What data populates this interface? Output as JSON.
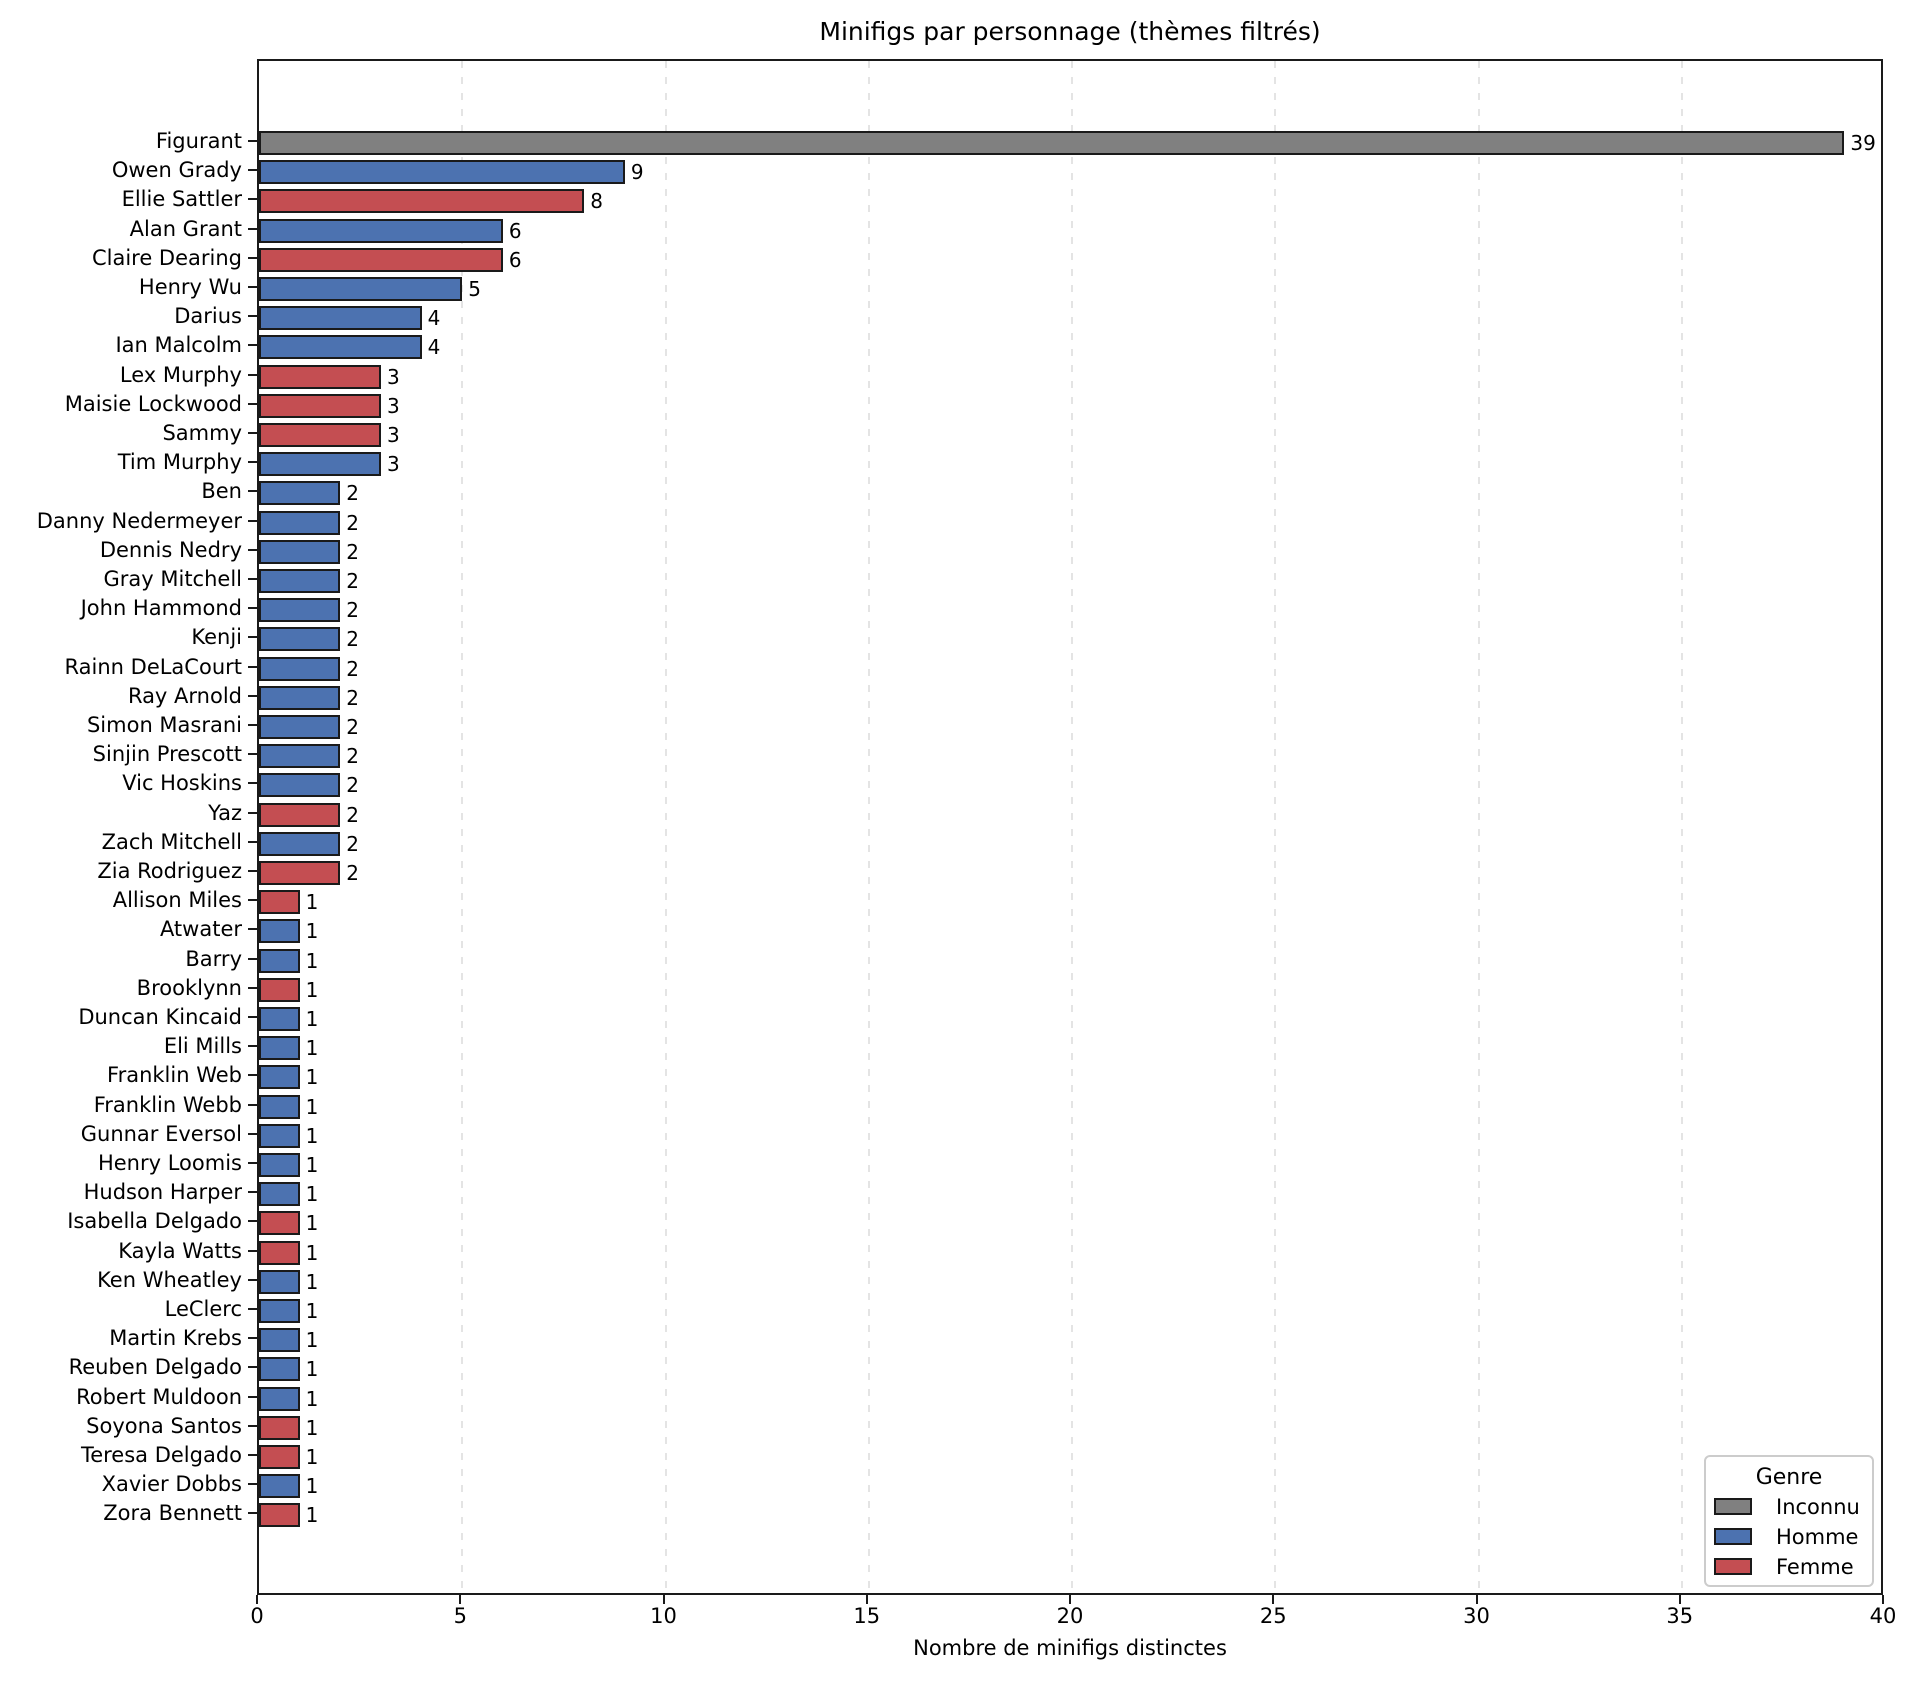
{
  "title": "Minifigs par personnage (thèmes filtrés)",
  "chart_data": {
    "type": "bar",
    "orientation": "horizontal",
    "title": "Minifigs par personnage (thèmes filtrés)",
    "xlabel": "Nombre de minifigs distinctes",
    "ylabel": "",
    "xlim": [
      0,
      40
    ],
    "xticks": [
      0,
      5,
      10,
      15,
      20,
      25,
      30,
      35,
      40
    ],
    "grid": "vertical-dashed",
    "value_labels_shown": true,
    "legend": {
      "title": "Genre",
      "position": "lower-right",
      "entries": [
        {
          "label": "Inconnu",
          "color": "#808080"
        },
        {
          "label": "Homme",
          "color": "#4C72B0"
        },
        {
          "label": "Femme",
          "color": "#C44E52"
        }
      ]
    },
    "bar_edge_color": "#1a1a1a",
    "bars": [
      {
        "label": "Figurant",
        "value": 39,
        "genre": "Inconnu"
      },
      {
        "label": "Owen Grady",
        "value": 9,
        "genre": "Homme"
      },
      {
        "label": "Ellie Sattler",
        "value": 8,
        "genre": "Femme"
      },
      {
        "label": "Alan Grant",
        "value": 6,
        "genre": "Homme"
      },
      {
        "label": "Claire Dearing",
        "value": 6,
        "genre": "Femme"
      },
      {
        "label": "Henry Wu",
        "value": 5,
        "genre": "Homme"
      },
      {
        "label": "Darius",
        "value": 4,
        "genre": "Homme"
      },
      {
        "label": "Ian Malcolm",
        "value": 4,
        "genre": "Homme"
      },
      {
        "label": "Lex Murphy",
        "value": 3,
        "genre": "Femme"
      },
      {
        "label": "Maisie Lockwood",
        "value": 3,
        "genre": "Femme"
      },
      {
        "label": "Sammy",
        "value": 3,
        "genre": "Femme"
      },
      {
        "label": "Tim Murphy",
        "value": 3,
        "genre": "Homme"
      },
      {
        "label": "Ben",
        "value": 2,
        "genre": "Homme"
      },
      {
        "label": "Danny Nedermeyer",
        "value": 2,
        "genre": "Homme"
      },
      {
        "label": "Dennis Nedry",
        "value": 2,
        "genre": "Homme"
      },
      {
        "label": "Gray Mitchell",
        "value": 2,
        "genre": "Homme"
      },
      {
        "label": "John Hammond",
        "value": 2,
        "genre": "Homme"
      },
      {
        "label": "Kenji",
        "value": 2,
        "genre": "Homme"
      },
      {
        "label": "Rainn DeLaCourt",
        "value": 2,
        "genre": "Homme"
      },
      {
        "label": "Ray Arnold",
        "value": 2,
        "genre": "Homme"
      },
      {
        "label": "Simon Masrani",
        "value": 2,
        "genre": "Homme"
      },
      {
        "label": "Sinjin Prescott",
        "value": 2,
        "genre": "Homme"
      },
      {
        "label": "Vic Hoskins",
        "value": 2,
        "genre": "Homme"
      },
      {
        "label": "Yaz",
        "value": 2,
        "genre": "Femme"
      },
      {
        "label": "Zach Mitchell",
        "value": 2,
        "genre": "Homme"
      },
      {
        "label": "Zia Rodriguez",
        "value": 2,
        "genre": "Femme"
      },
      {
        "label": "Allison Miles",
        "value": 1,
        "genre": "Femme"
      },
      {
        "label": "Atwater",
        "value": 1,
        "genre": "Homme"
      },
      {
        "label": "Barry",
        "value": 1,
        "genre": "Homme"
      },
      {
        "label": "Brooklynn",
        "value": 1,
        "genre": "Femme"
      },
      {
        "label": "Duncan Kincaid",
        "value": 1,
        "genre": "Homme"
      },
      {
        "label": "Eli Mills",
        "value": 1,
        "genre": "Homme"
      },
      {
        "label": "Franklin Web",
        "value": 1,
        "genre": "Homme"
      },
      {
        "label": "Franklin Webb",
        "value": 1,
        "genre": "Homme"
      },
      {
        "label": "Gunnar Eversol",
        "value": 1,
        "genre": "Homme"
      },
      {
        "label": "Henry Loomis",
        "value": 1,
        "genre": "Homme"
      },
      {
        "label": "Hudson Harper",
        "value": 1,
        "genre": "Homme"
      },
      {
        "label": "Isabella Delgado",
        "value": 1,
        "genre": "Femme"
      },
      {
        "label": "Kayla Watts",
        "value": 1,
        "genre": "Femme"
      },
      {
        "label": "Ken Wheatley",
        "value": 1,
        "genre": "Homme"
      },
      {
        "label": "LeClerc",
        "value": 1,
        "genre": "Homme"
      },
      {
        "label": "Martin Krebs",
        "value": 1,
        "genre": "Homme"
      },
      {
        "label": "Reuben Delgado",
        "value": 1,
        "genre": "Homme"
      },
      {
        "label": "Robert Muldoon",
        "value": 1,
        "genre": "Homme"
      },
      {
        "label": "Soyona Santos",
        "value": 1,
        "genre": "Femme"
      },
      {
        "label": "Teresa Delgado",
        "value": 1,
        "genre": "Femme"
      },
      {
        "label": "Xavier Dobbs",
        "value": 1,
        "genre": "Homme"
      },
      {
        "label": "Zora Bennett",
        "value": 1,
        "genre": "Femme"
      }
    ]
  }
}
